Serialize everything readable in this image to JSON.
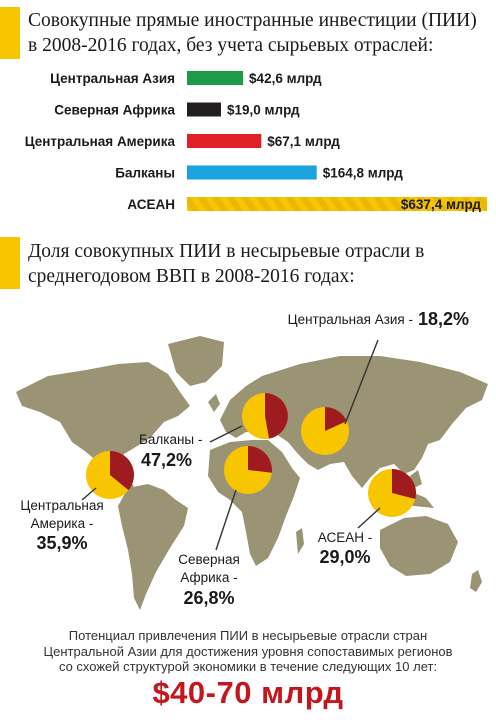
{
  "colors": {
    "accent": "#f7c600",
    "map_land": "#9b9474",
    "pie_fdi": "#9e1b20",
    "pie_rest": "#f7c600",
    "value_red": "#c4161c"
  },
  "chart_data": [
    {
      "type": "bar",
      "title": "Совокупные прямые иностранные инвестиции (ПИИ) в 2008-2016 годах, без учета сырьевых отраслей:",
      "unit": "млрд",
      "categories": [
        "Центральная Азия",
        "Северная Африка",
        "Центральная Америка",
        "Балканы",
        "АСЕАН"
      ],
      "values": [
        42.6,
        19.0,
        67.1,
        164.8,
        637.4
      ],
      "value_labels": [
        "$42,6 млрд",
        "$19,0 млрд",
        "$67,1 млрд",
        "$164,8 млрд",
        "$637,4 млрд"
      ],
      "bar_colors": [
        "#1e9b48",
        "#231f20",
        "#e21e26",
        "#1aa3df",
        "#f7c600"
      ]
    },
    {
      "type": "pie",
      "title": "Доля совокупных ПИИ в несырьевые отрасли в среднегодовом ВВП в 2008-2016 годах:",
      "series": [
        {
          "name": "Центральная Азия",
          "percent": 18.2,
          "label": "18,2%"
        },
        {
          "name": "Балканы",
          "percent": 47.2,
          "label": "47,2%"
        },
        {
          "name": "Центральная Америка",
          "percent": 35.9,
          "label": "35,9%"
        },
        {
          "name": "Северная Африка",
          "percent": 26.8,
          "label": "26,8%"
        },
        {
          "name": "АСЕАН",
          "percent": 29.0,
          "label": "29,0%"
        }
      ]
    }
  ],
  "map_labels": {
    "central_asia": "Центральная Азия -",
    "balkans_line1": "Балканы -",
    "central_america_line1": "Центральная",
    "central_america_line2": "Америка -",
    "north_africa_line1": "Северная",
    "north_africa_line2": "Африка -",
    "asean": "АСЕАН -"
  },
  "footer": {
    "line1": "Потенциал привлечения ПИИ в несырьевые отрасли стран",
    "line2": "Центральной Азии для достижения уровня сопоставимых регионов",
    "line3": "со схожей структурой экономики в течение следующих 10 лет:",
    "value": "$40-70 млрд"
  }
}
